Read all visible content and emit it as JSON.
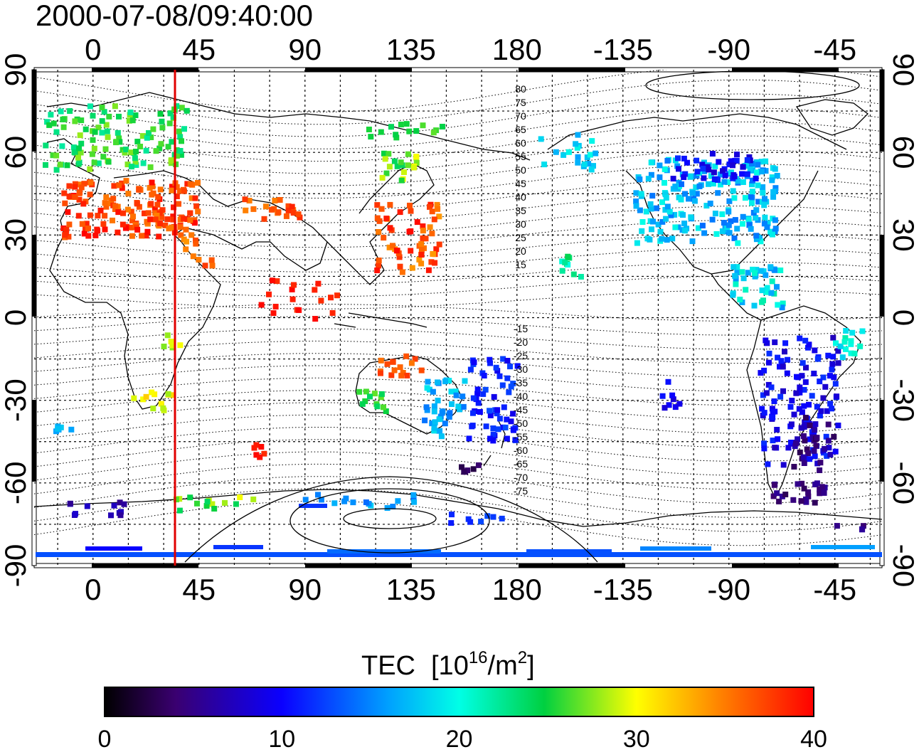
{
  "timestamp": "2000-07-08/09:40:00",
  "map": {
    "lon_ticks": [
      "0",
      "45",
      "90",
      "135",
      "180",
      "-135",
      "-90",
      "-45"
    ],
    "lat_ticks": [
      "90",
      "60",
      "30",
      "0",
      "-30",
      "-60",
      "-90"
    ],
    "lon_range": [
      -25,
      335
    ],
    "lat_range": [
      -90,
      90
    ],
    "grid": true,
    "marked_meridian_lon": 35,
    "marked_meridian_color": "#e00000",
    "contour_labels_north": [
      "80",
      "75",
      "70",
      "65",
      "60",
      "55",
      "50",
      "45",
      "40",
      "35",
      "30",
      "25",
      "20",
      "15"
    ],
    "contour_labels_south": [
      "-15",
      "-20",
      "-25",
      "-30",
      "-35",
      "-40",
      "-45",
      "-50",
      "-55",
      "-60",
      "-65",
      "-70",
      "-75"
    ]
  },
  "colorbar": {
    "title": "TEC",
    "unit_base": "[10",
    "unit_exp": "16",
    "unit_mid": "/m",
    "unit_exp2": "2",
    "unit_close": "]",
    "ticks": [
      "0",
      "10",
      "20",
      "30",
      "40"
    ],
    "min": 0,
    "max": 40
  }
}
